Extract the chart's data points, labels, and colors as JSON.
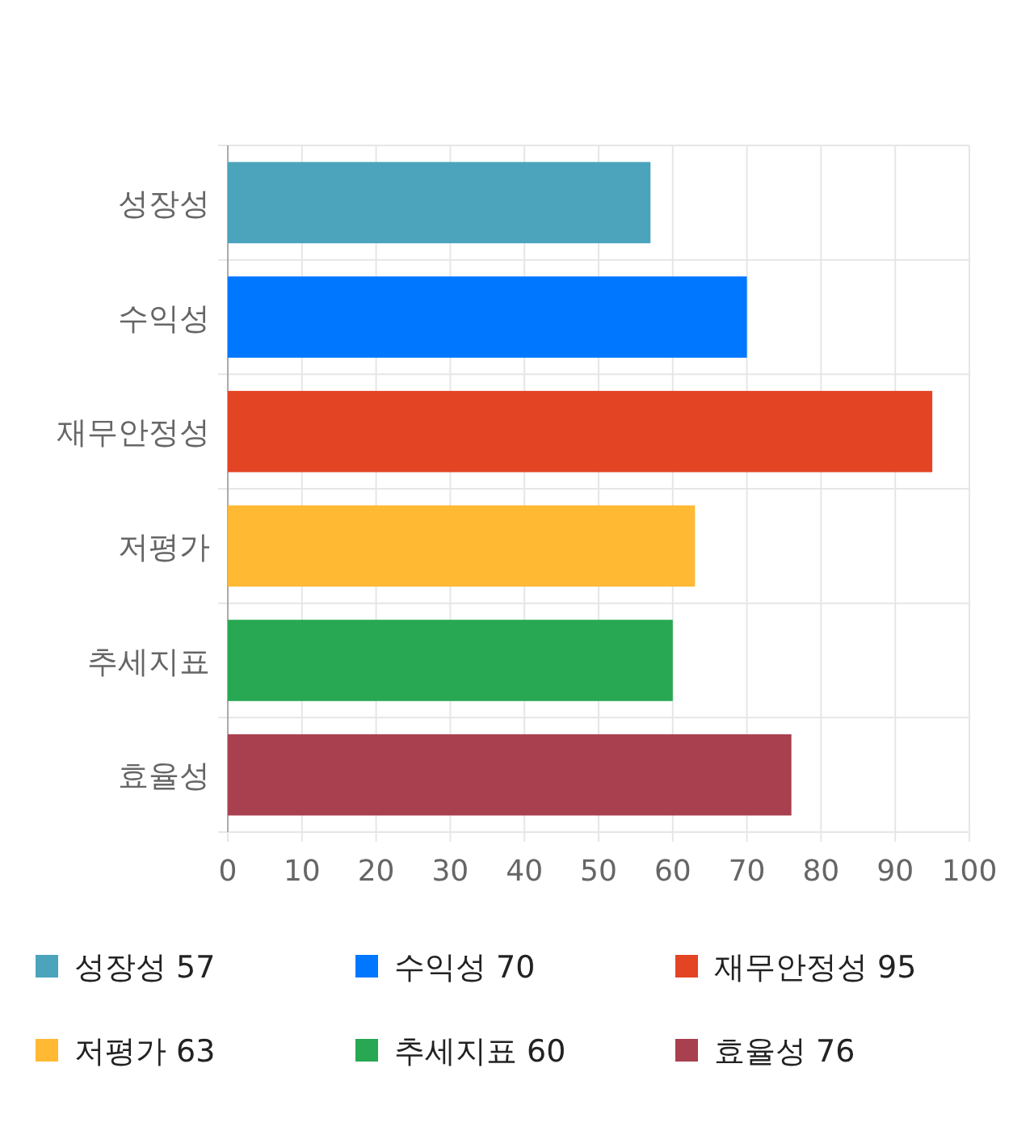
{
  "chart_data": {
    "type": "bar",
    "orientation": "horizontal",
    "stacked": true,
    "categories": [
      "성장성",
      "수익성",
      "재무안정성",
      "저평가",
      "추세지표",
      "효율성"
    ],
    "series": [
      {
        "name": "성장성 57",
        "color": "#4ba3bc",
        "values": [
          57,
          null,
          null,
          null,
          null,
          null
        ]
      },
      {
        "name": "수익성 70",
        "color": "#0077ff",
        "values": [
          null,
          70,
          null,
          null,
          null,
          null
        ]
      },
      {
        "name": "재무안정성 95",
        "color": "#e34424",
        "values": [
          null,
          null,
          95,
          null,
          null,
          null
        ]
      },
      {
        "name": "저평가 63",
        "color": "#ffb933",
        "values": [
          null,
          null,
          null,
          63,
          null,
          null
        ]
      },
      {
        "name": "추세지표 60",
        "color": "#28a853",
        "values": [
          null,
          null,
          null,
          null,
          60,
          null
        ]
      },
      {
        "name": "효율성 76",
        "color": "#a8404f",
        "values": [
          null,
          null,
          null,
          null,
          null,
          76
        ]
      }
    ],
    "xlim": [
      0,
      100
    ],
    "xticks": [
      0,
      10,
      20,
      30,
      40,
      50,
      60,
      70,
      80,
      90,
      100
    ],
    "grid": true,
    "legend": "bottom"
  }
}
